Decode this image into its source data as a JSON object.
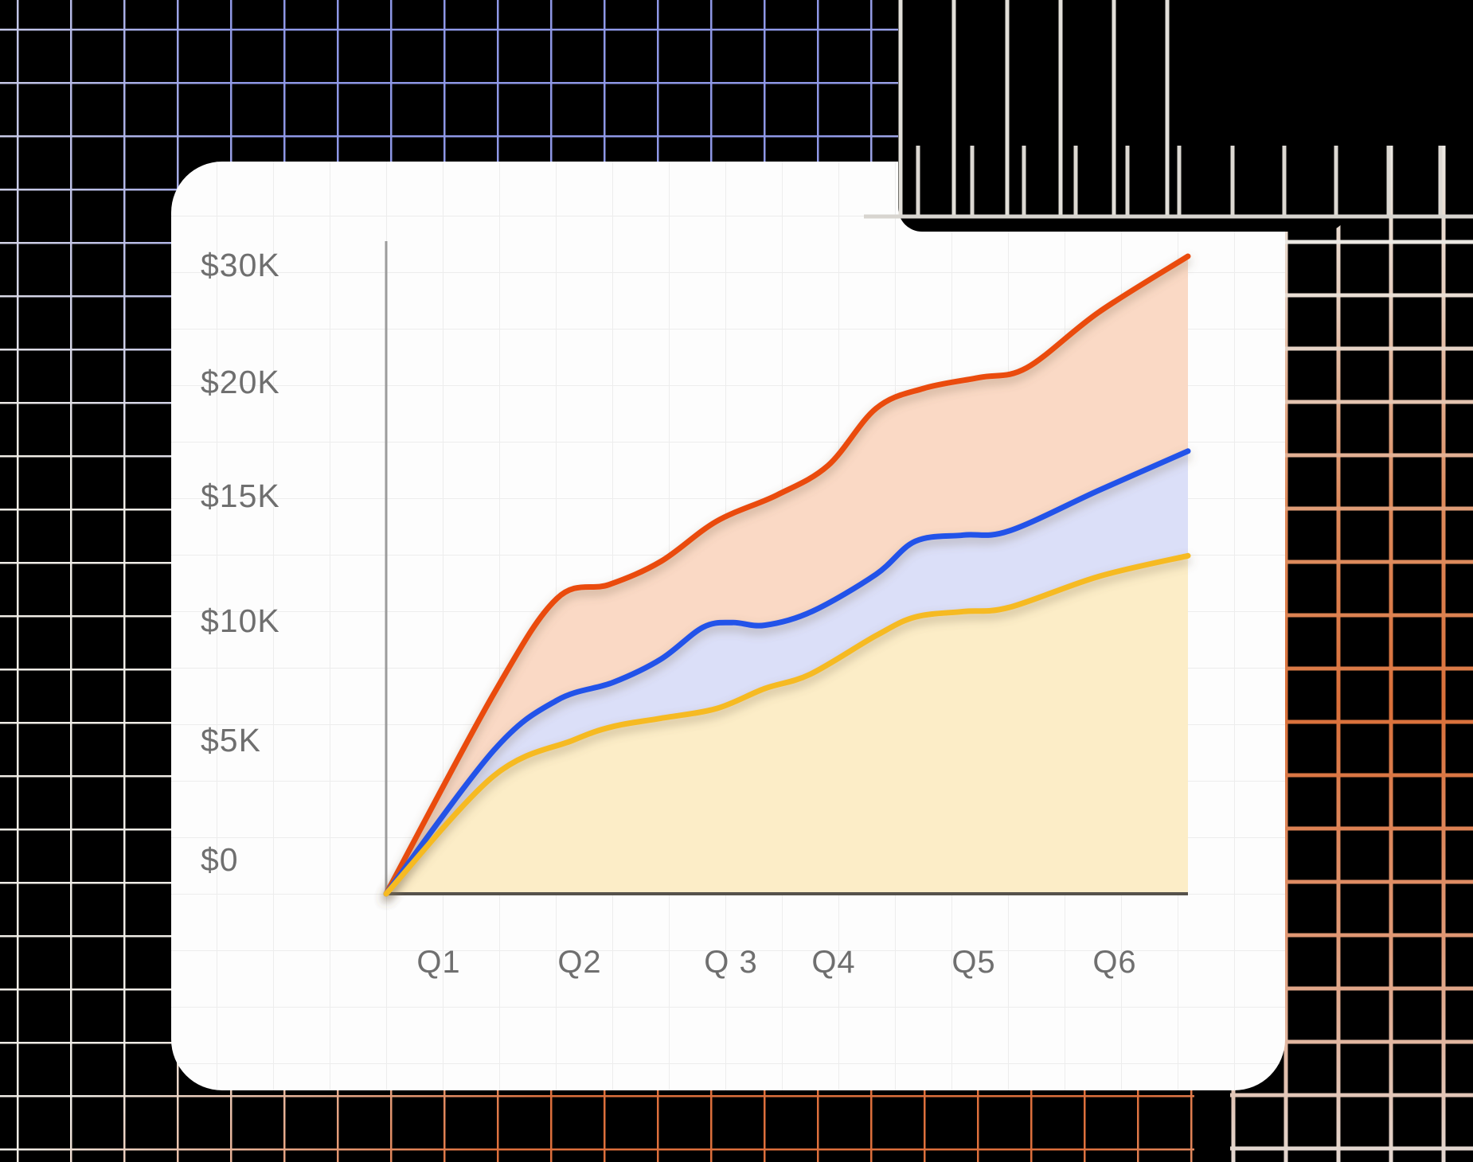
{
  "page": {
    "description": "Stylized growth chart illustration on a white rounded card over a black backdrop with decorative periwinkle, white and orange grids",
    "background_color": "#000000",
    "decor_grid_colors": {
      "base_white": "#efece6",
      "periwinkle": "#8e97e6",
      "orange": "#dd6f3c"
    }
  },
  "card": {
    "background": "#fdfdfd",
    "inner_grid_color": "#ededed",
    "axis_color": "#9c9c9c",
    "baseline_color": "#56524b",
    "label_color": "#6f6f6f"
  },
  "chart_data": {
    "type": "area",
    "title": "",
    "xlabel": "",
    "ylabel": "",
    "legend": "none",
    "grid": "light",
    "categories": [
      "Q1",
      "Q2",
      "Q 3",
      "Q4",
      "Q5",
      "Q6"
    ],
    "y_tick_labels": [
      "$30K",
      "$20K",
      "$15K",
      "$10K",
      "$5K",
      "$0"
    ],
    "y_ticks": [
      {
        "label": "$30K",
        "f": 0.087
      },
      {
        "label": "$20K",
        "f": 0.257
      },
      {
        "label": "$15K",
        "f": 0.422
      },
      {
        "label": "$10K",
        "f": 0.603
      },
      {
        "label": "$5K",
        "f": 0.777
      },
      {
        "label": "$0",
        "f": 0.95
      }
    ],
    "x_ticks": [
      {
        "label": "Q1",
        "f": 0.066
      },
      {
        "label": "Q2",
        "f": 0.241
      },
      {
        "label": "Q 3",
        "f": 0.43
      },
      {
        "label": "Q4",
        "f": 0.558
      },
      {
        "label": "Q5",
        "f": 0.733
      },
      {
        "label": "Q6",
        "f": 0.909
      }
    ],
    "series": [
      {
        "name": "top-orange",
        "line_color": "#EA4B0B",
        "fill_color": "#FAD9C5",
        "values_k_by_quarter": [
          3.0,
          11.4,
          14.2,
          16.4,
          20.3,
          26.7
        ],
        "end_value_k": 30,
        "points": [
          [
            0,
            1
          ],
          [
            0.134,
            0.71
          ],
          [
            0.213,
            0.571
          ],
          [
            0.278,
            0.551
          ],
          [
            0.343,
            0.517
          ],
          [
            0.412,
            0.459
          ],
          [
            0.487,
            0.421
          ],
          [
            0.551,
            0.378
          ],
          [
            0.611,
            0.295
          ],
          [
            0.67,
            0.266
          ],
          [
            0.74,
            0.25
          ],
          [
            0.799,
            0.236
          ],
          [
            0.889,
            0.155
          ],
          [
            1,
            0.074
          ]
        ]
      },
      {
        "name": "middle-blue",
        "line_color": "#2153E9",
        "fill_color": "#DBDFF8",
        "values_k_by_quarter": [
          2.7,
          7.0,
          9.9,
          10.8,
          13.5,
          15.6
        ],
        "end_value_k": 17,
        "points": [
          [
            0,
            1
          ],
          [
            0.134,
            0.792
          ],
          [
            0.213,
            0.719
          ],
          [
            0.283,
            0.693
          ],
          [
            0.343,
            0.659
          ],
          [
            0.395,
            0.613
          ],
          [
            0.432,
            0.606
          ],
          [
            0.472,
            0.61
          ],
          [
            0.531,
            0.59
          ],
          [
            0.611,
            0.536
          ],
          [
            0.66,
            0.488
          ],
          [
            0.72,
            0.479
          ],
          [
            0.777,
            0.473
          ],
          [
            0.889,
            0.414
          ],
          [
            1,
            0.357
          ]
        ]
      },
      {
        "name": "bottom-yellow",
        "line_color": "#F6BA24",
        "fill_color": "#FCEDC7",
        "values_k_by_quarter": [
          2.0,
          5.2,
          6.5,
          8.1,
          10.4,
          12.0
        ],
        "end_value_k": 12.6,
        "points": [
          [
            0,
            1
          ],
          [
            0.134,
            0.829
          ],
          [
            0.233,
            0.777
          ],
          [
            0.283,
            0.757
          ],
          [
            0.343,
            0.745
          ],
          [
            0.412,
            0.731
          ],
          [
            0.472,
            0.702
          ],
          [
            0.529,
            0.681
          ],
          [
            0.611,
            0.625
          ],
          [
            0.66,
            0.598
          ],
          [
            0.72,
            0.59
          ],
          [
            0.777,
            0.584
          ],
          [
            0.889,
            0.539
          ],
          [
            1,
            0.509
          ]
        ]
      }
    ]
  }
}
